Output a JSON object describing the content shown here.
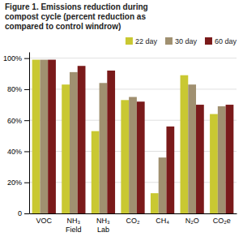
{
  "chart_data": {
    "type": "bar",
    "title": "Figure 1. Emissions reduction during\ncompost cycle (percent reduction as\ncompared to control windrow)",
    "categories": [
      "VOC",
      "NH₃\nField",
      "NH₃\nLab",
      "CO₂",
      "CH₄",
      "N₂O",
      "CO₂e"
    ],
    "series": [
      {
        "name": "22 day",
        "color": "#c9c832",
        "values": [
          99,
          83,
          53,
          73,
          13,
          89,
          64
        ]
      },
      {
        "name": "30 day",
        "color": "#a09070",
        "values": [
          99,
          91,
          84,
          75,
          36,
          83,
          69
        ]
      },
      {
        "name": "60 day",
        "color": "#7a1a1a",
        "values": [
          99,
          95,
          92,
          72,
          56,
          70,
          70
        ]
      }
    ],
    "ylim": [
      0,
      104
    ],
    "yticks": [
      0,
      {
        "value": 20,
        "label": "20%"
      },
      {
        "value": 40,
        "label": "40%"
      },
      {
        "value": 60,
        "label": "60%"
      },
      {
        "value": 80,
        "label": "80%"
      },
      {
        "value": 100,
        "label": "100%"
      }
    ],
    "grid": true,
    "legend": "upper right"
  }
}
